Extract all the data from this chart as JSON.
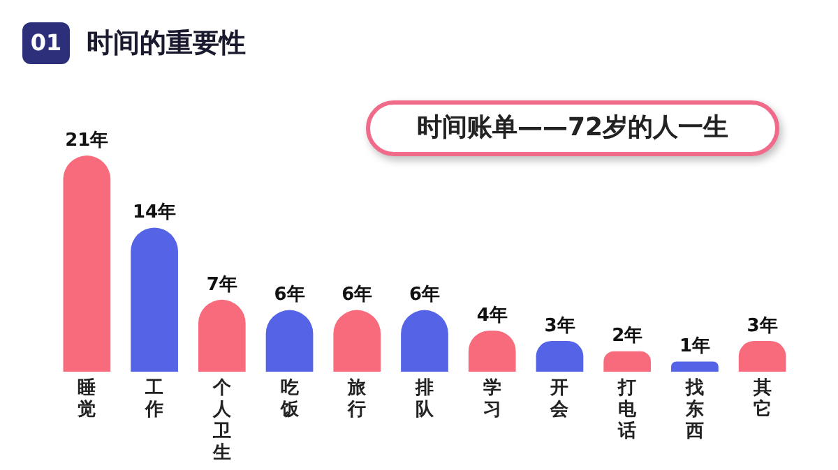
{
  "chart_data": {
    "type": "bar",
    "title": "时间的重要性",
    "subtitle": "时间账单——72岁的人一生",
    "annotations": [
      "01"
    ],
    "categories": [
      "睡觉",
      "工作",
      "个人卫生",
      "吃饭",
      "旅行",
      "排队",
      "学习",
      "开会",
      "打电话",
      "找东西",
      "其它"
    ],
    "values": [
      21,
      14,
      7,
      6,
      6,
      6,
      4,
      3,
      2,
      1,
      3
    ],
    "value_labels": [
      "21年",
      "14年",
      "7年",
      "6年",
      "6年",
      "6年",
      "4年",
      "3年",
      "2年",
      "1年",
      "3年"
    ],
    "colors": [
      "#f86b7c",
      "#5563e6",
      "#f86b7c",
      "#5563e6",
      "#f86b7c",
      "#5563e6",
      "#f86b7c",
      "#5563e6",
      "#f86b7c",
      "#5563e6",
      "#f86b7c"
    ],
    "relative": false,
    "grid": false,
    "legend": false
  }
}
